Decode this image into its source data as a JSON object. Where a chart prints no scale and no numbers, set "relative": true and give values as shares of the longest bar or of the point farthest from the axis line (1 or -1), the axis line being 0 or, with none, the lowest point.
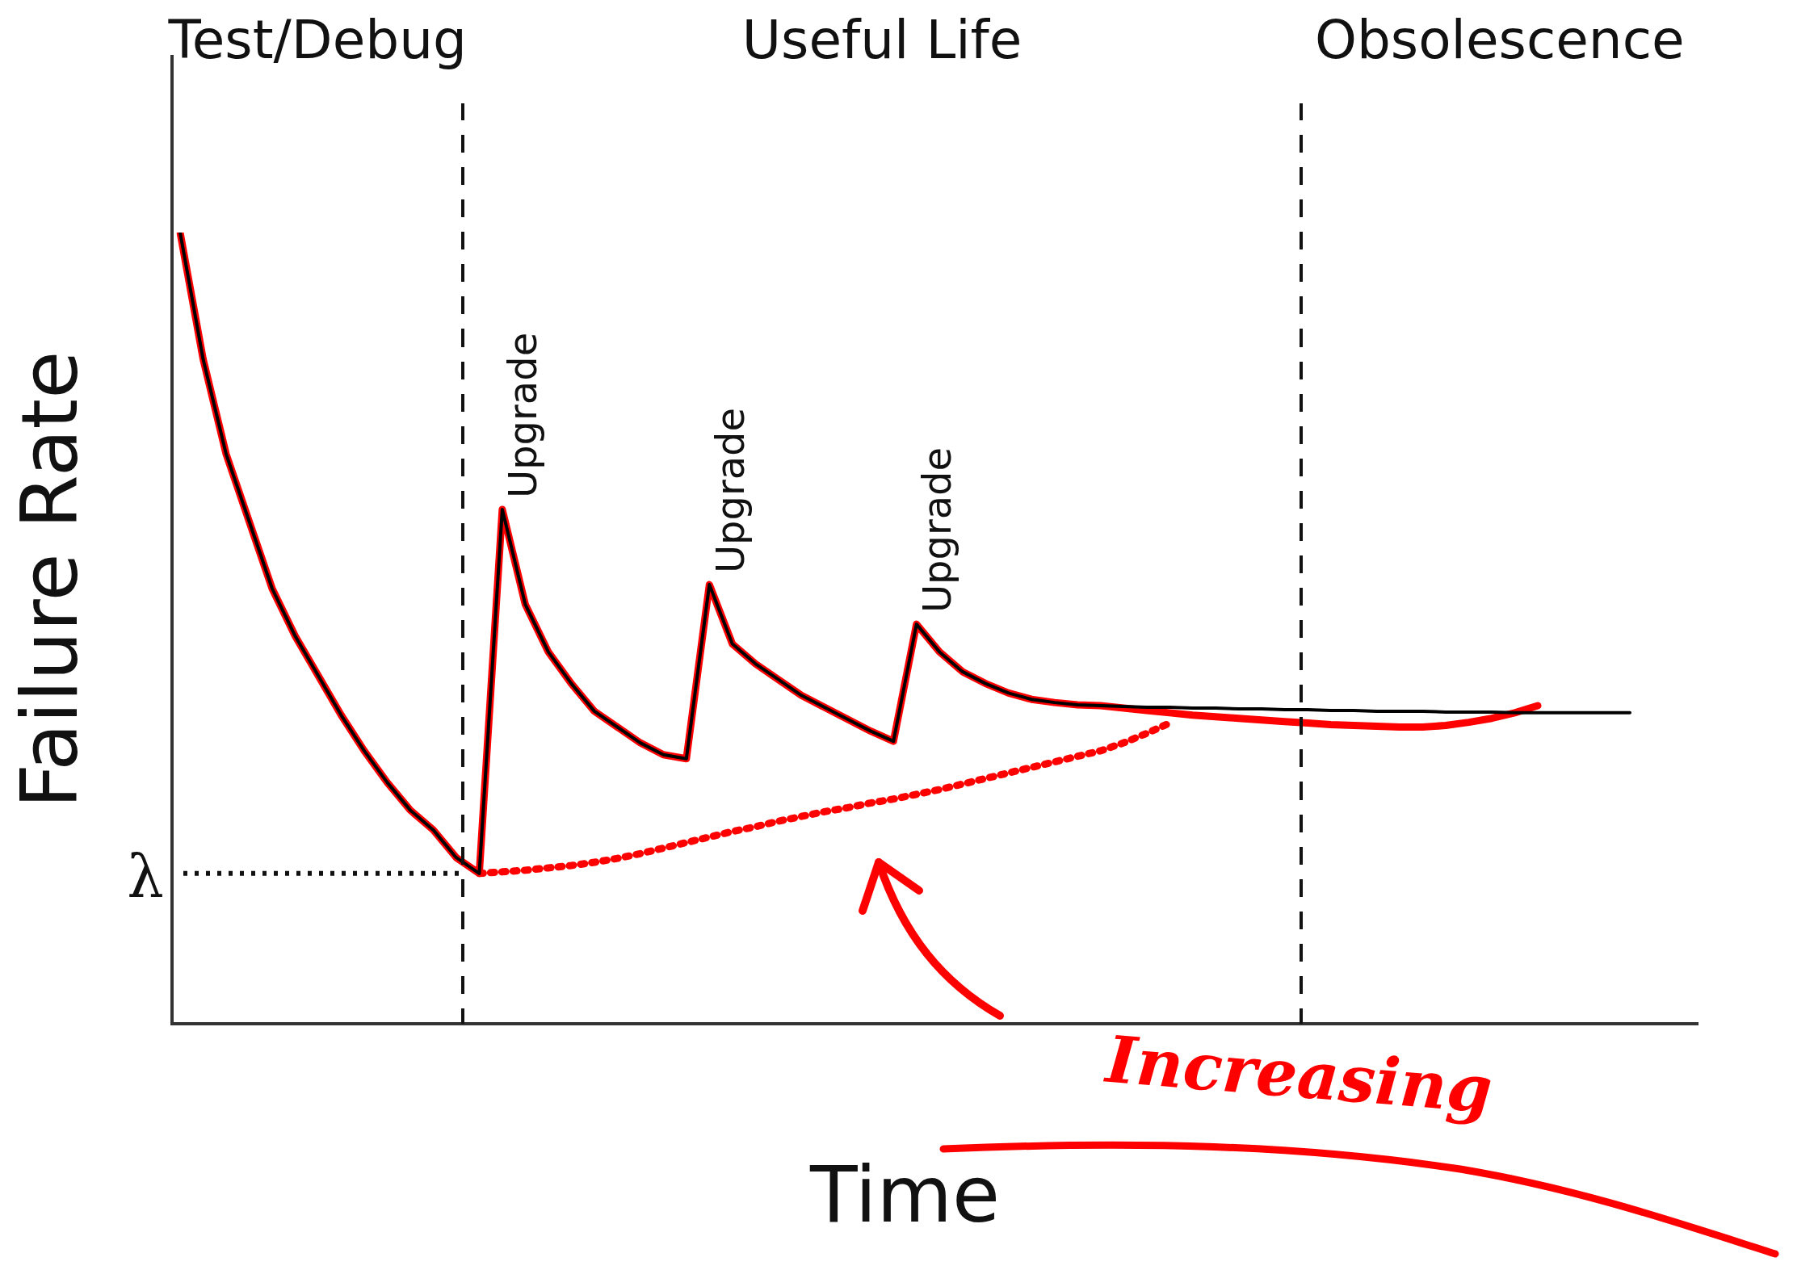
{
  "chart_data": {
    "type": "line",
    "relative": true,
    "xlabel": "Time",
    "ylabel": "Failure Rate",
    "tick_labels": false,
    "legend": false,
    "marker": "none",
    "categories": [
      null,
      null,
      null,
      null,
      null,
      null,
      null,
      null,
      null,
      null,
      null,
      null,
      null,
      null,
      null,
      null,
      null,
      null,
      null,
      null,
      null,
      null,
      null,
      null,
      null,
      null,
      null,
      null,
      null,
      null,
      null,
      null,
      null,
      null,
      null,
      null,
      null,
      null,
      null,
      null,
      null,
      null,
      null,
      null,
      null,
      null,
      null,
      null,
      null,
      null,
      null,
      null,
      null,
      null,
      null,
      null,
      null,
      null,
      null,
      null,
      null,
      null,
      null,
      null
    ],
    "series": [
      {
        "color": "#000000",
        "line_style": "solid",
        "values": [
          1.0,
          0.84,
          0.72,
          0.635,
          0.55,
          0.49,
          0.44,
          0.39,
          0.345,
          0.305,
          0.27,
          0.245,
          0.21,
          0.19,
          0.65,
          0.53,
          0.47,
          0.43,
          0.395,
          0.375,
          0.355,
          0.34,
          0.335,
          0.555,
          0.48,
          0.455,
          0.435,
          0.415,
          0.4,
          0.385,
          0.37,
          0.357,
          0.505,
          0.47,
          0.445,
          0.43,
          0.418,
          0.41,
          0.406,
          0.403,
          0.402,
          0.401,
          0.4,
          0.4,
          0.399,
          0.399,
          0.398,
          0.398,
          0.397,
          0.397,
          0.396,
          0.396,
          0.395,
          0.395,
          0.395,
          0.394,
          0.394,
          0.394,
          0.393,
          0.393,
          0.393,
          0.393,
          0.393,
          0.393
        ]
      },
      {
        "color": "#ff0000",
        "line_style": "solid",
        "values": [
          1.0,
          0.84,
          0.72,
          0.635,
          0.55,
          0.49,
          0.44,
          0.39,
          0.345,
          0.305,
          0.27,
          0.245,
          0.21,
          0.19,
          0.65,
          0.53,
          0.47,
          0.43,
          0.395,
          0.375,
          0.355,
          0.34,
          0.335,
          0.555,
          0.48,
          0.455,
          0.435,
          0.415,
          0.4,
          0.385,
          0.37,
          0.357,
          0.505,
          0.47,
          0.445,
          0.43,
          0.418,
          0.41,
          0.406,
          0.403,
          0.402,
          0.399,
          0.396,
          0.393,
          0.39,
          0.388,
          0.386,
          0.384,
          0.382,
          0.38,
          0.378,
          0.377,
          0.376,
          0.375,
          0.375,
          0.377,
          0.381,
          0.386,
          0.393,
          0.402,
          null,
          null,
          null,
          null
        ]
      },
      {
        "color": "#ff0000",
        "line_style": "dotted",
        "values": [
          null,
          null,
          null,
          null,
          null,
          null,
          null,
          null,
          null,
          null,
          null,
          null,
          null,
          0.19,
          0.192,
          0.194,
          0.197,
          0.2,
          0.204,
          0.209,
          0.215,
          0.222,
          0.229,
          0.236,
          0.243,
          0.249,
          0.256,
          0.262,
          0.268,
          0.273,
          0.279,
          0.284,
          0.29,
          0.296,
          0.303,
          0.31,
          0.317,
          0.324,
          0.331,
          0.338,
          0.345,
          0.355,
          0.367,
          0.38,
          null,
          null,
          null,
          null,
          null,
          null,
          null,
          null,
          null,
          null,
          null,
          null,
          null,
          null,
          null,
          null,
          null,
          null,
          null,
          null
        ]
      }
    ],
    "ref_lines": [
      {
        "axis": "y",
        "value": 0.19,
        "label": "λ",
        "line_style": "dotted"
      }
    ],
    "annotations": [
      "Test/Debug",
      "Useful Life",
      "Obsolescence",
      "Upgrade",
      "Upgrade",
      "Upgrade",
      "Increasing"
    ]
  }
}
